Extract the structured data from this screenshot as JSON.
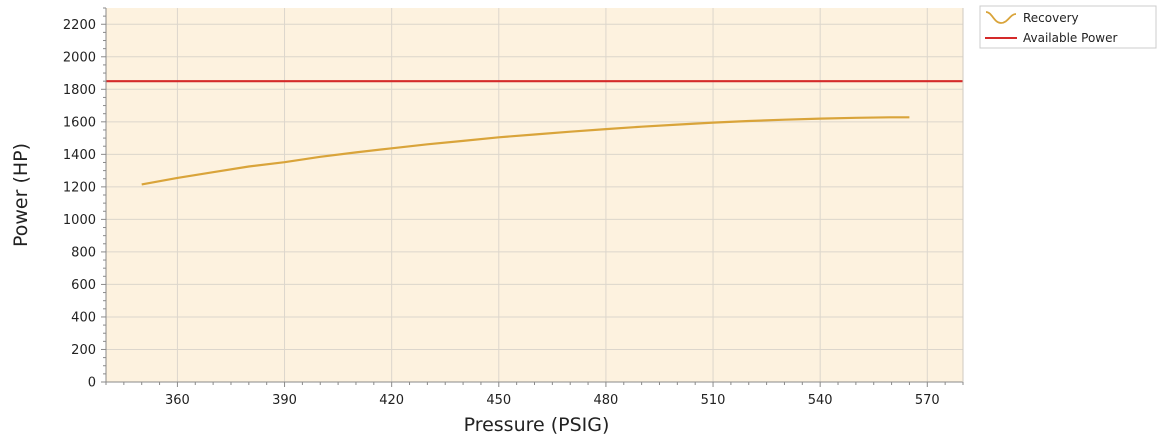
{
  "chart_data": {
    "type": "line",
    "title": "",
    "xlabel": "Pressure (PSIG)",
    "ylabel": "Power (HP)",
    "xlim": [
      340,
      580
    ],
    "ylim": [
      0,
      2300
    ],
    "x_ticks": [
      360,
      390,
      420,
      450,
      480,
      510,
      540,
      570
    ],
    "y_ticks": [
      0,
      200,
      400,
      600,
      800,
      1000,
      1200,
      1400,
      1600,
      1800,
      2000,
      2200
    ],
    "grid": true,
    "legend_position": "top-right, outside plot",
    "plot_background": "#fdf2df",
    "grid_color": "#dcd6cc",
    "series": [
      {
        "name": "Recovery",
        "kind": "curve",
        "color": "#d9a43a",
        "x": [
          350,
          360,
          370,
          380,
          390,
          400,
          410,
          420,
          430,
          440,
          450,
          460,
          470,
          480,
          490,
          500,
          510,
          520,
          530,
          540,
          550,
          560,
          565
        ],
        "y": [
          1215,
          1255,
          1290,
          1325,
          1352,
          1385,
          1412,
          1437,
          1462,
          1483,
          1505,
          1522,
          1539,
          1555,
          1570,
          1583,
          1595,
          1605,
          1613,
          1620,
          1625,
          1628,
          1628
        ]
      },
      {
        "name": "Available Power",
        "kind": "constant",
        "color": "#d42a2a",
        "x": [
          340,
          580
        ],
        "y": [
          1850,
          1850
        ]
      }
    ]
  }
}
